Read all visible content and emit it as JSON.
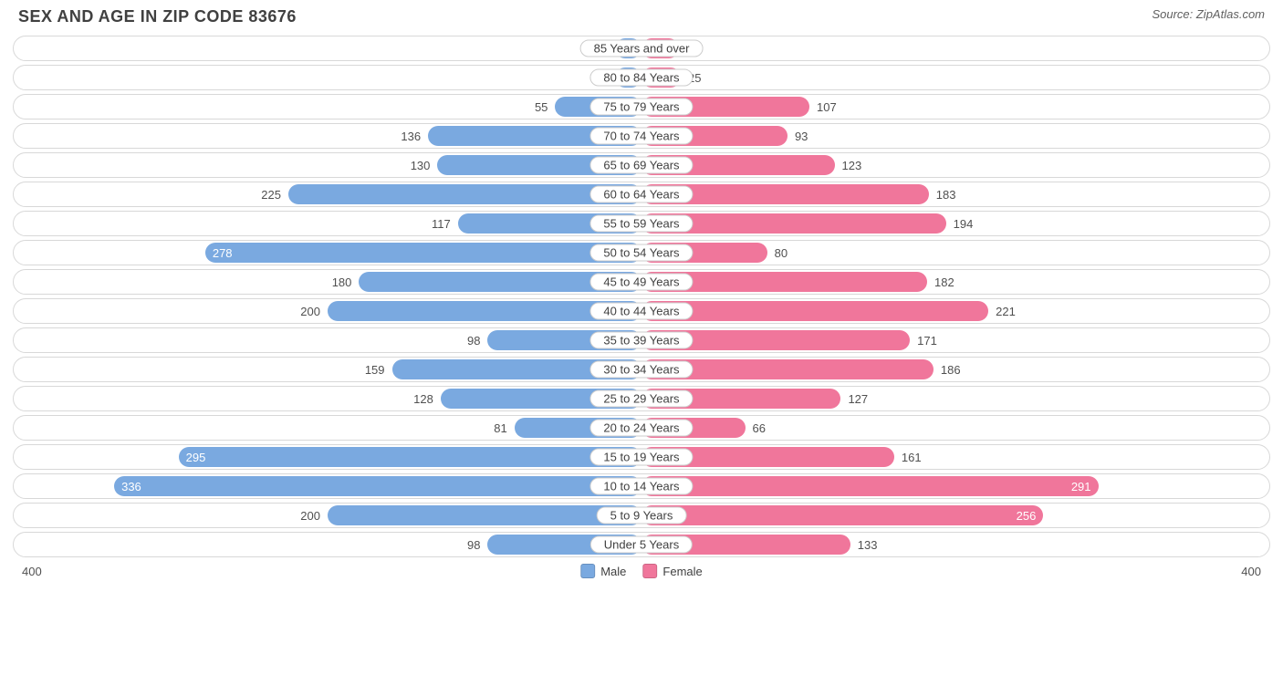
{
  "title": "SEX AND AGE IN ZIP CODE 83676",
  "source": "Source: ZipAtlas.com",
  "chart": {
    "type": "bidirectional-bar",
    "axis_max": 400,
    "axis_label_left": "400",
    "axis_label_right": "400",
    "colors": {
      "male": "#7aa9e0",
      "female": "#f0769b",
      "row_border": "#d8d8d8",
      "text": "#505050",
      "label_border": "#cccccc",
      "background": "#ffffff"
    },
    "inside_threshold": 250,
    "legend": [
      {
        "label": "Male",
        "color": "#7aa9e0"
      },
      {
        "label": "Female",
        "color": "#f0769b"
      }
    ],
    "rows": [
      {
        "label": "85 Years and over",
        "male": 17,
        "female": 24
      },
      {
        "label": "80 to 84 Years",
        "male": 17,
        "female": 25
      },
      {
        "label": "75 to 79 Years",
        "male": 55,
        "female": 107
      },
      {
        "label": "70 to 74 Years",
        "male": 136,
        "female": 93
      },
      {
        "label": "65 to 69 Years",
        "male": 130,
        "female": 123
      },
      {
        "label": "60 to 64 Years",
        "male": 225,
        "female": 183
      },
      {
        "label": "55 to 59 Years",
        "male": 117,
        "female": 194
      },
      {
        "label": "50 to 54 Years",
        "male": 278,
        "female": 80
      },
      {
        "label": "45 to 49 Years",
        "male": 180,
        "female": 182
      },
      {
        "label": "40 to 44 Years",
        "male": 200,
        "female": 221
      },
      {
        "label": "35 to 39 Years",
        "male": 98,
        "female": 171
      },
      {
        "label": "30 to 34 Years",
        "male": 159,
        "female": 186
      },
      {
        "label": "25 to 29 Years",
        "male": 128,
        "female": 127
      },
      {
        "label": "20 to 24 Years",
        "male": 81,
        "female": 66
      },
      {
        "label": "15 to 19 Years",
        "male": 295,
        "female": 161
      },
      {
        "label": "10 to 14 Years",
        "male": 336,
        "female": 291
      },
      {
        "label": "5 to 9 Years",
        "male": 200,
        "female": 256
      },
      {
        "label": "Under 5 Years",
        "male": 98,
        "female": 133
      }
    ]
  }
}
